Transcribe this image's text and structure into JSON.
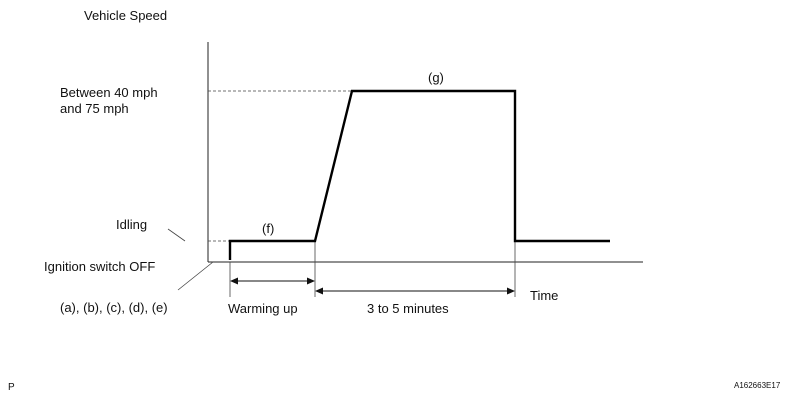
{
  "y_axis_label": "Vehicle Speed",
  "x_axis_label": "Time",
  "levels": {
    "high_line1": "Between 40 mph",
    "high_line2": "and 75 mph",
    "idling": "Idling",
    "ignition_off": "Ignition switch OFF"
  },
  "step_labels": {
    "start": "(a), (b), (c), (d), (e)",
    "warm": "(f)",
    "drive": "(g)"
  },
  "durations": {
    "warming_up": "Warming up",
    "drive_time": "3 to 5 minutes"
  },
  "corner": {
    "left": "P",
    "right": "A162663E17"
  }
}
